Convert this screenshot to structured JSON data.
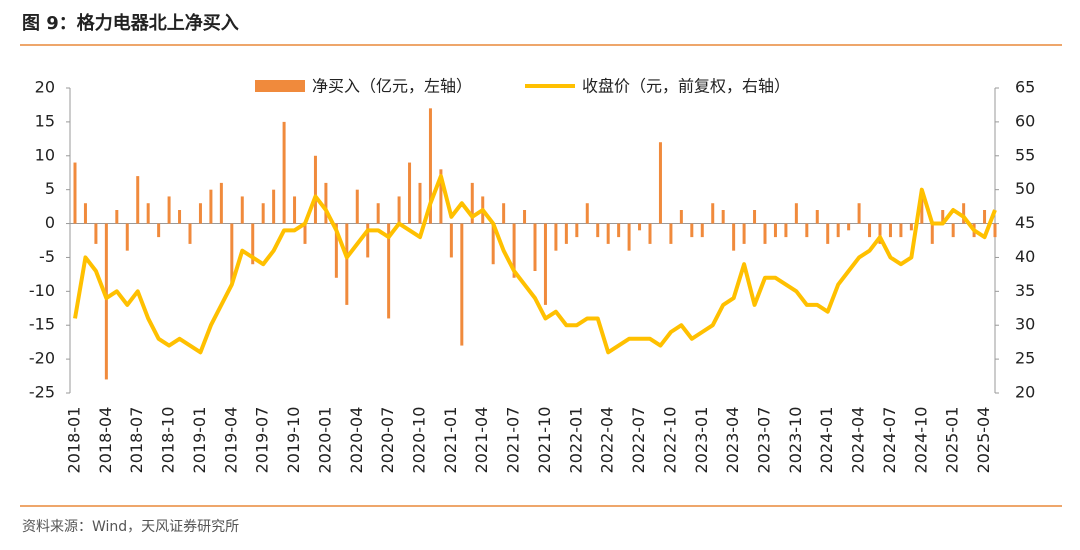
{
  "chart_data": {
    "type": "bar-line",
    "title": "图 9：格力电器北上净买入",
    "source": "资料来源：Wind，天风证券研究所",
    "categories": [
      "2018-01",
      "2018-02",
      "2018-03",
      "2018-04",
      "2018-05",
      "2018-06",
      "2018-07",
      "2018-08",
      "2018-09",
      "2018-10",
      "2018-11",
      "2018-12",
      "2019-01",
      "2019-02",
      "2019-03",
      "2019-04",
      "2019-05",
      "2019-06",
      "2019-07",
      "2019-08",
      "2019-09",
      "2019-10",
      "2019-11",
      "2019-12",
      "2020-01",
      "2020-02",
      "2020-03",
      "2020-04",
      "2020-05",
      "2020-06",
      "2020-07",
      "2020-08",
      "2020-09",
      "2020-10",
      "2020-11",
      "2020-12",
      "2021-01",
      "2021-02",
      "2021-03",
      "2021-04",
      "2021-05",
      "2021-06",
      "2021-07",
      "2021-08",
      "2021-09",
      "2021-10",
      "2021-11",
      "2021-12",
      "2022-01",
      "2022-02",
      "2022-03",
      "2022-04",
      "2022-05",
      "2022-06",
      "2022-07",
      "2022-08",
      "2022-09",
      "2022-10",
      "2022-11",
      "2022-12",
      "2023-01",
      "2023-02",
      "2023-03",
      "2023-04",
      "2023-05",
      "2023-06",
      "2023-07",
      "2023-08",
      "2023-09",
      "2023-10",
      "2023-11",
      "2023-12",
      "2024-01",
      "2024-02",
      "2024-03",
      "2024-04",
      "2024-05",
      "2024-06",
      "2024-07",
      "2024-08",
      "2024-09",
      "2024-10",
      "2024-11",
      "2024-12",
      "2025-01",
      "2025-02",
      "2025-03",
      "2025-04",
      "2025-05"
    ],
    "xticks": [
      "2018-01",
      "2018-04",
      "2018-07",
      "2018-10",
      "2019-01",
      "2019-04",
      "2019-07",
      "2019-10",
      "2020-01",
      "2020-04",
      "2020-07",
      "2020-10",
      "2021-01",
      "2021-04",
      "2021-07",
      "2021-10",
      "2022-01",
      "2022-04",
      "2022-07",
      "2022-10",
      "2023-01",
      "2023-04",
      "2023-07",
      "2023-10",
      "2024-01",
      "2024-04",
      "2024-07",
      "2024-10",
      "2025-01",
      "2025-04"
    ],
    "series": [
      {
        "name": "净买入（亿元，左轴）",
        "color": "#f08a3c",
        "values": [
          9,
          3,
          -3,
          -23,
          2,
          -4,
          7,
          3,
          -2,
          4,
          2,
          -3,
          3,
          5,
          6,
          -9,
          4,
          -6,
          3,
          5,
          15,
          4,
          -3,
          10,
          6,
          -8,
          -12,
          5,
          -5,
          3,
          -14,
          4,
          9,
          6,
          17,
          8,
          -5,
          -18,
          6,
          4,
          -6,
          3,
          -8,
          2,
          -7,
          -12,
          -4,
          -3,
          -2,
          3,
          -2,
          -3,
          -2,
          -4,
          -1,
          -3,
          12,
          -3,
          2,
          -2,
          -2,
          3,
          2,
          -4,
          -3,
          2,
          -3,
          -2,
          -2,
          3,
          -2,
          2,
          -3,
          -2,
          -1,
          3,
          -2,
          -3,
          -2,
          -2,
          -1,
          4,
          -3,
          2,
          -2,
          3,
          -2,
          2,
          -2
        ]
      },
      {
        "name": "收盘价（元，前复权，右轴）",
        "color": "#ffc000",
        "axis": "y2",
        "values": [
          31,
          40,
          38,
          34,
          35,
          33,
          35,
          31,
          28,
          27,
          28,
          27,
          26,
          30,
          33,
          36,
          41,
          40,
          39,
          41,
          44,
          44,
          45,
          49,
          47,
          44,
          40,
          42,
          44,
          44,
          43,
          45,
          44,
          43,
          48,
          52,
          46,
          48,
          46,
          47,
          45,
          41,
          38,
          36,
          34,
          31,
          32,
          30,
          30,
          31,
          31,
          26,
          27,
          28,
          28,
          28,
          27,
          29,
          30,
          28,
          29,
          30,
          33,
          34,
          39,
          33,
          37,
          37,
          36,
          35,
          33,
          33,
          32,
          36,
          38,
          40,
          41,
          43,
          40,
          39,
          40,
          50,
          45,
          45,
          47,
          46,
          44,
          43,
          47
        ]
      }
    ],
    "ylim": [
      -25,
      20
    ],
    "yticks": [
      20,
      15,
      10,
      5,
      0,
      -5,
      -10,
      -15,
      -20,
      -25
    ],
    "y2lim": [
      20,
      65
    ],
    "y2ticks": [
      65,
      60,
      55,
      50,
      45,
      40,
      35,
      30,
      25,
      20
    ]
  }
}
